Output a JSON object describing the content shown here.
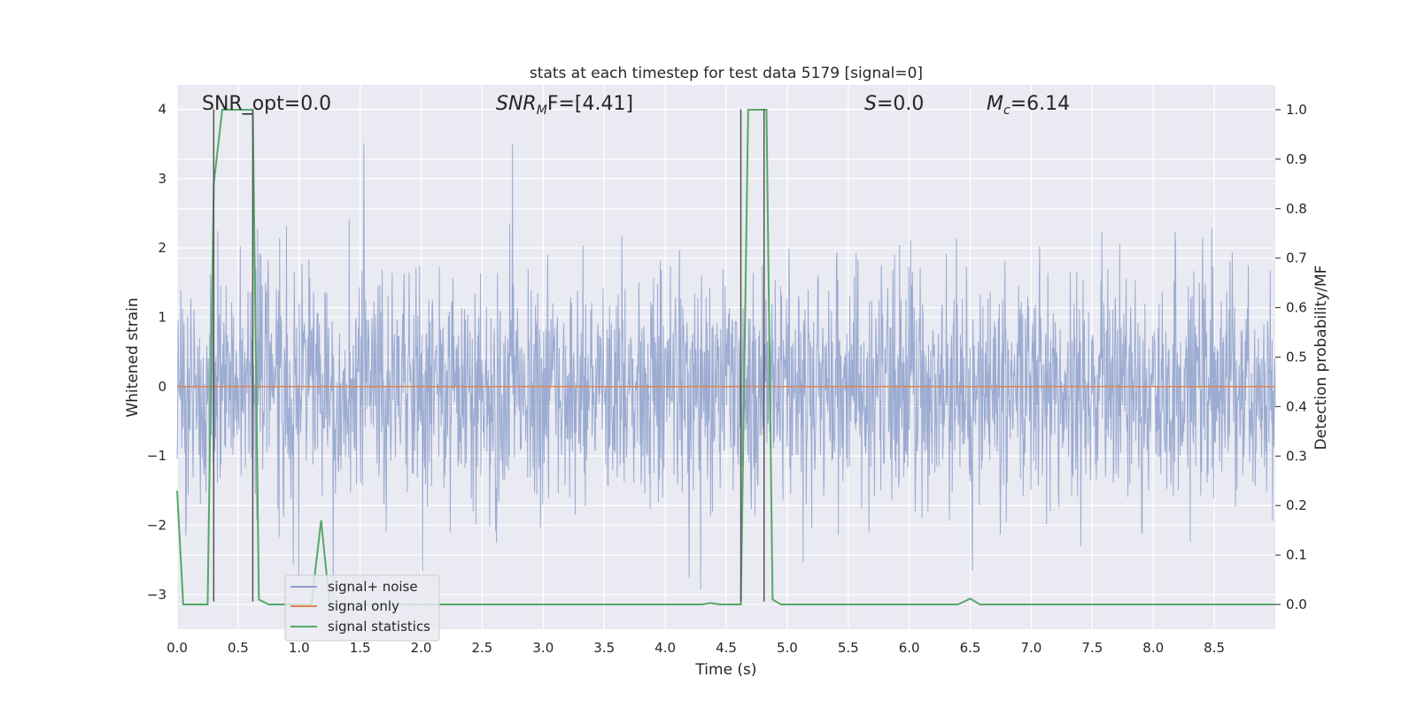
{
  "chart_data": {
    "type": "line",
    "title": "stats at each timestep for test data 5179 [signal=0]",
    "xlabel": "Time (s)",
    "ylabel": "Whitened strain",
    "ylabel_right": "Detection probability/MF",
    "xlim": [
      0.0,
      9.0
    ],
    "ylim": [
      -3.5,
      4.35
    ],
    "ylim_right": [
      -0.05,
      1.05
    ],
    "x_ticks": [
      0.0,
      0.5,
      1.0,
      1.5,
      2.0,
      2.5,
      3.0,
      3.5,
      4.0,
      4.5,
      5.0,
      5.5,
      6.0,
      6.5,
      7.0,
      7.5,
      8.0,
      8.5
    ],
    "x_tick_labels": [
      "0.0",
      "0.5",
      "1.0",
      "1.5",
      "2.0",
      "2.5",
      "3.0",
      "3.5",
      "4.0",
      "4.5",
      "5.0",
      "5.5",
      "6.0",
      "6.5",
      "7.0",
      "7.5",
      "8.0",
      "8.5"
    ],
    "y_ticks": [
      -3,
      -2,
      -1,
      0,
      1,
      2,
      3,
      4
    ],
    "y_tick_labels": [
      "−3",
      "−2",
      "−1",
      "0",
      "1",
      "2",
      "3",
      "4"
    ],
    "y_right_ticks": [
      0.0,
      0.1,
      0.2,
      0.3,
      0.4,
      0.5,
      0.6,
      0.7,
      0.8,
      0.9,
      1.0
    ],
    "y_right_tick_labels": [
      "0.0",
      "0.1",
      "0.2",
      "0.3",
      "0.4",
      "0.5",
      "0.6",
      "0.7",
      "0.8",
      "0.9",
      "1.0"
    ],
    "grid": true,
    "legend_position": "lower-left",
    "annotations": {
      "snr_opt": "SNR_opt=0.0",
      "snr_mf_prefix": "SNR",
      "snr_mf_sub": "M",
      "snr_mf_suffix": "F=[4.41]",
      "s_label": "S",
      "s_value": "=0.0",
      "mc_label": "M",
      "mc_sub": "c",
      "mc_value": "=6.14"
    },
    "series": [
      {
        "name": "signal+ noise",
        "color": "#8da0cb",
        "style": "dense noise, approx range -3.1 to 3.5, typical std ~0.8",
        "x_range": [
          0.0,
          9.0
        ]
      },
      {
        "name": "signal only",
        "color": "#dd8452",
        "x": [
          0.0,
          9.0
        ],
        "y": [
          0.0,
          0.0
        ]
      },
      {
        "name": "signal statistics",
        "color": "#55a868",
        "axis": "right",
        "x": [
          0.0,
          0.05,
          0.25,
          0.3,
          0.37,
          0.62,
          0.67,
          0.75,
          1.1,
          1.18,
          1.25,
          1.3,
          4.3,
          4.37,
          4.45,
          4.62,
          4.68,
          4.75,
          4.83,
          4.88,
          4.95,
          6.4,
          6.5,
          6.58,
          9.0
        ],
        "y": [
          0.23,
          0.0,
          0.0,
          0.85,
          1.0,
          1.0,
          0.01,
          0.0,
          0.0,
          0.17,
          0.0,
          0.0,
          0.0,
          0.003,
          0.0,
          0.0,
          1.0,
          1.0,
          1.0,
          0.01,
          0.0,
          0.0,
          0.012,
          0.0,
          0.0
        ]
      }
    ],
    "vertical_markers": [
      {
        "x": 0.3,
        "y_top": 4.0,
        "y_bottom": -3.1
      },
      {
        "x": 0.62,
        "y_top": 4.0,
        "y_bottom": -3.1
      },
      {
        "x": 4.62,
        "y_top": 4.0,
        "y_bottom": -3.1
      },
      {
        "x": 4.81,
        "y_top": 4.0,
        "y_bottom": -3.1
      }
    ],
    "legend": [
      "signal+ noise",
      "signal only",
      "signal statistics"
    ]
  }
}
